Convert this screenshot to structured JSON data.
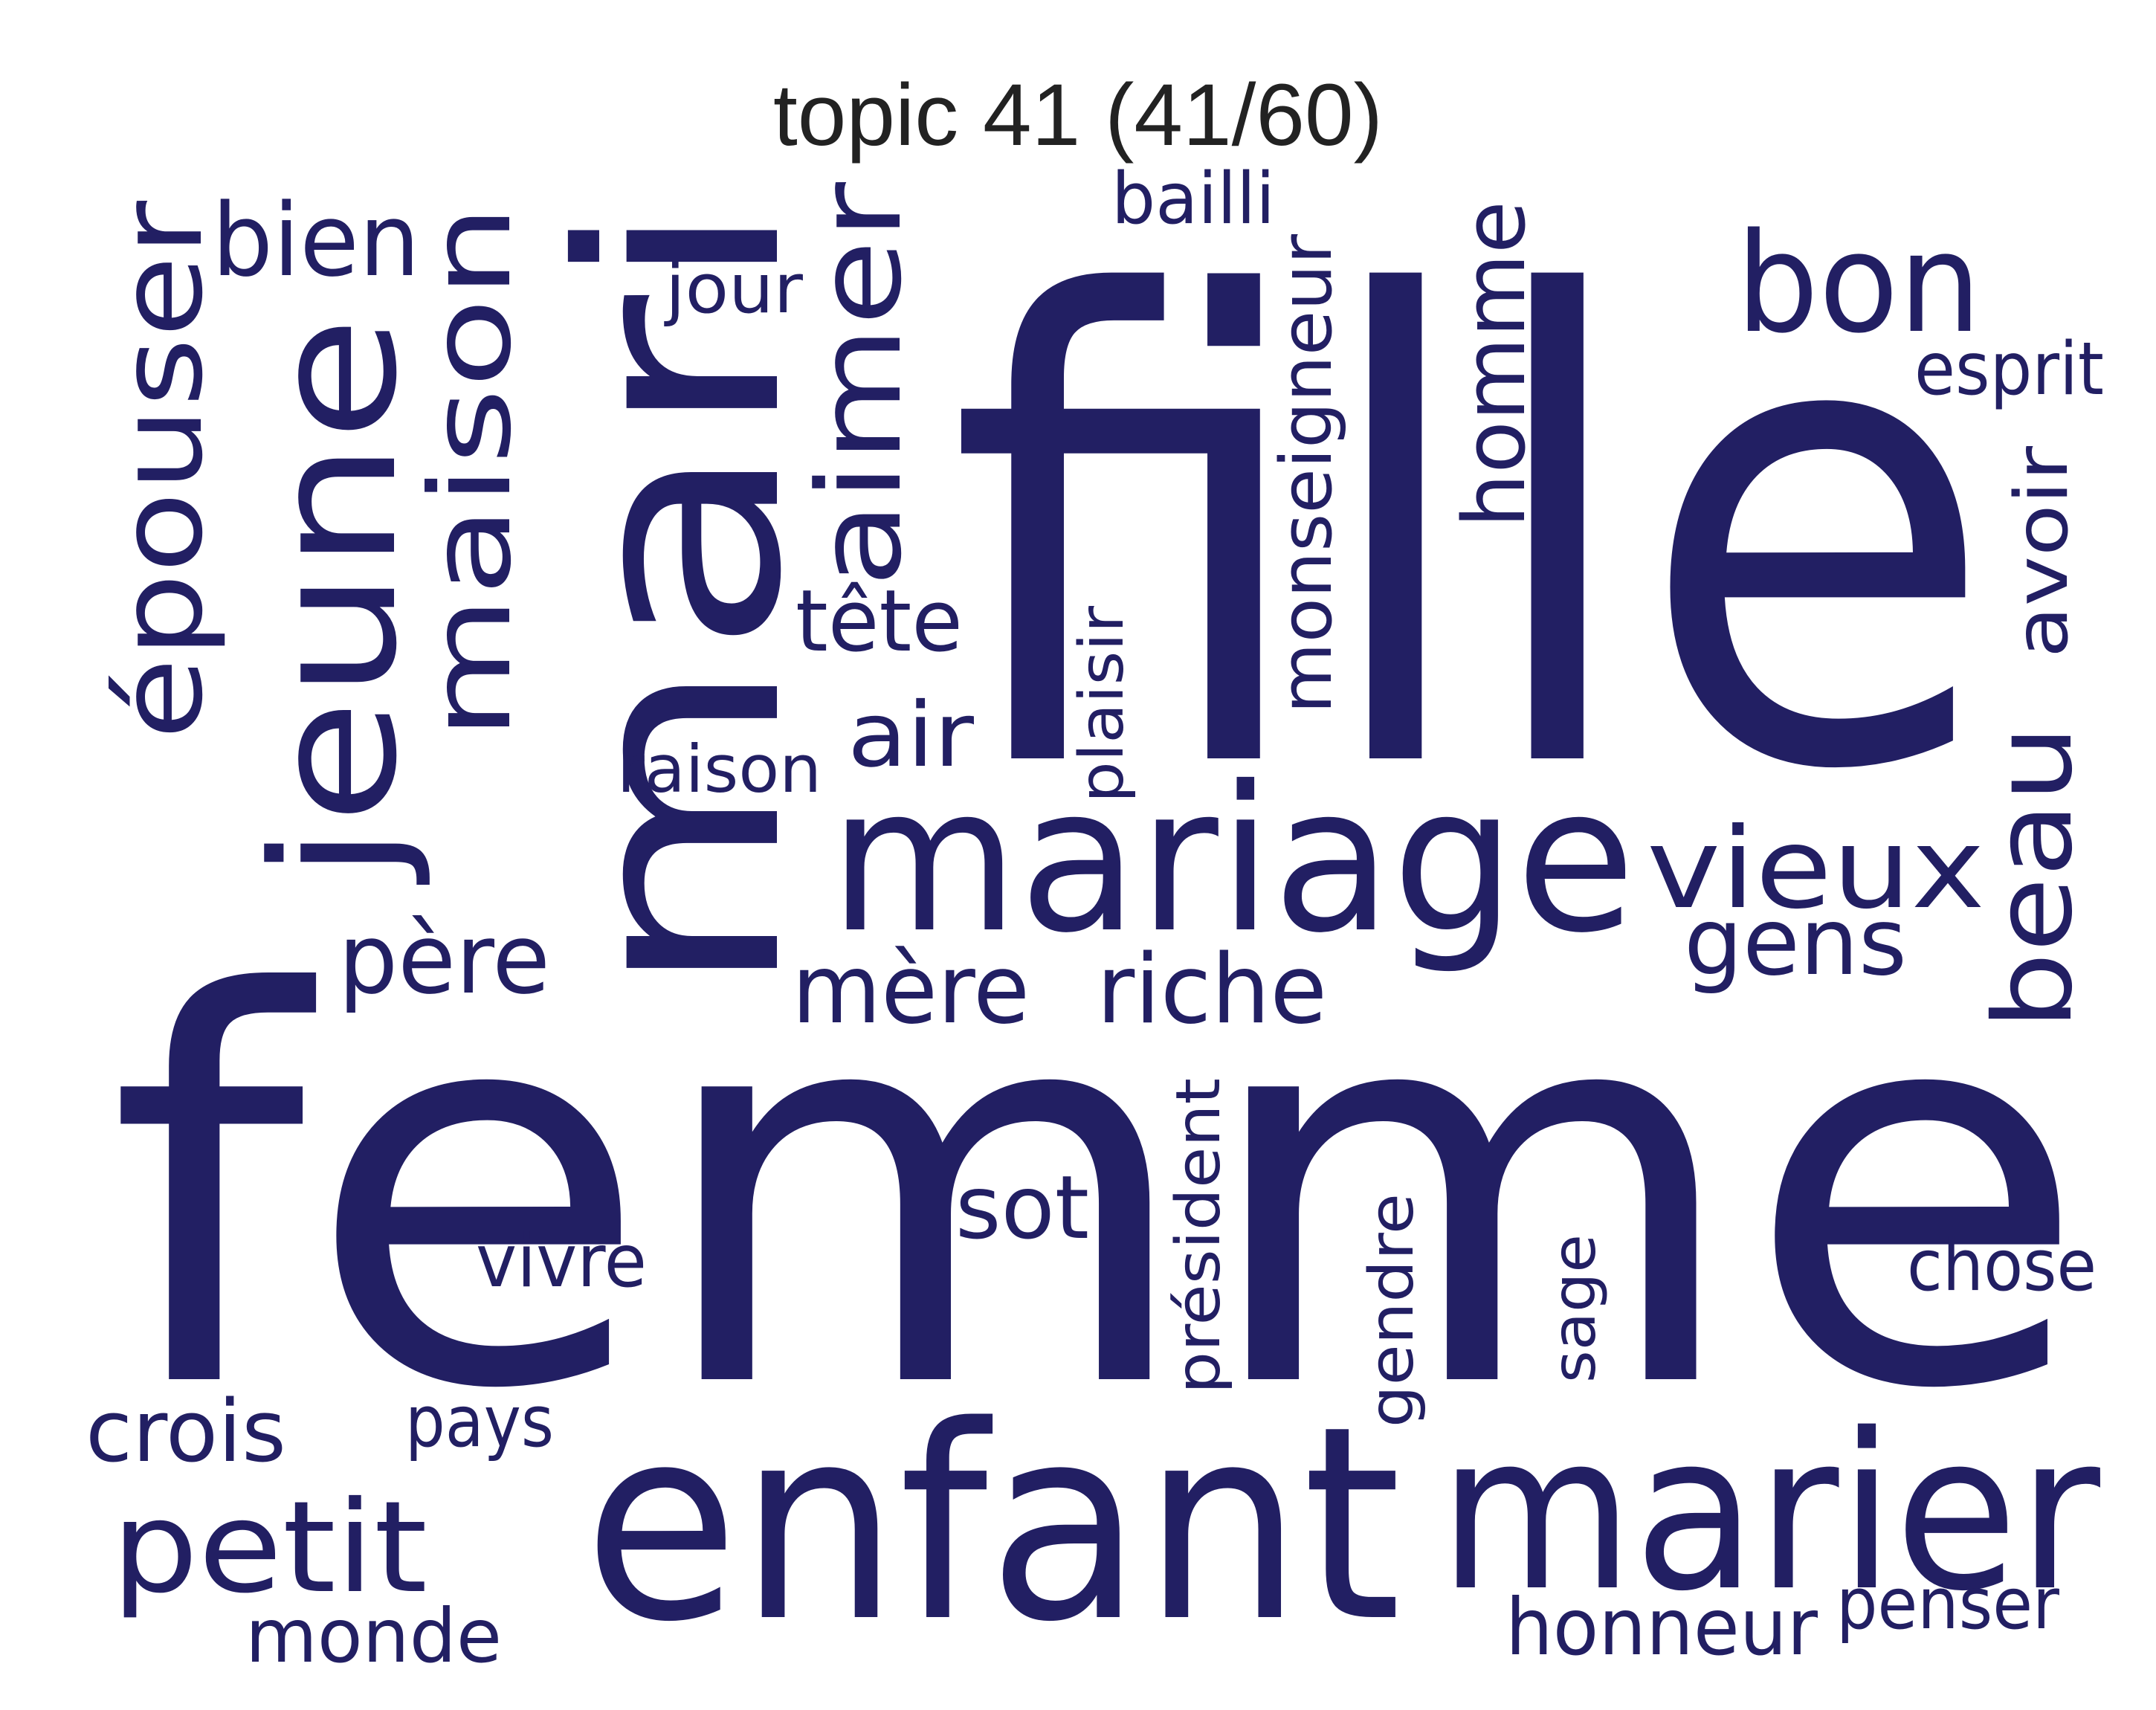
{
  "title": "topic 41 (41/60)",
  "colors": {
    "words": "#221f63",
    "title": "#222222",
    "background": "#ffffff"
  },
  "words": [
    "femme",
    "fille",
    "mari",
    "enfant",
    "marier",
    "mariage",
    "jeune",
    "épouser",
    "bien",
    "maison",
    "aimer",
    "bailli",
    "jour",
    "monseigneur",
    "homme",
    "bon",
    "esprit",
    "avoir",
    "tête",
    "air",
    "plaisir",
    "raison",
    "vieux",
    "gens",
    "beau",
    "père",
    "mère",
    "riche",
    "sot",
    "vivre",
    "président",
    "gendre",
    "sage",
    "chose",
    "crois",
    "pays",
    "petit",
    "monde",
    "honneur",
    "penser"
  ]
}
